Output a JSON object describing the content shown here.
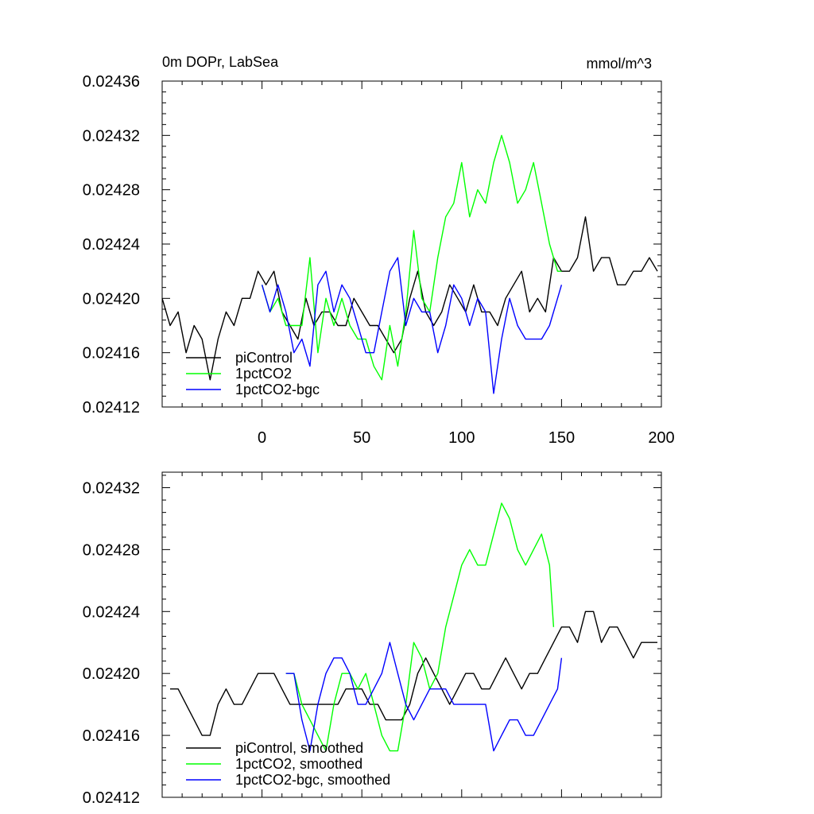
{
  "chart_data": [
    {
      "type": "line",
      "title_left": "0m DOPr, LabSea",
      "title_right": "mmol/m^3",
      "xlim": [
        -50,
        200
      ],
      "ylim": [
        0.02412,
        0.02436
      ],
      "y_ticks": [
        0.02412,
        0.02416,
        0.0242,
        0.02424,
        0.02428,
        0.02432,
        0.02436
      ],
      "y_tick_labels": [
        "0.02412",
        "0.02416",
        "0.02420",
        "0.02424",
        "0.02428",
        "0.02432",
        "0.02436"
      ],
      "x_ticks": [
        0,
        50,
        100,
        150,
        200
      ],
      "x_tick_labels": [
        "0",
        "50",
        "100",
        "150",
        "200"
      ],
      "legend_position": "bottom-left",
      "series": [
        {
          "name": "piControl",
          "color": "#000000",
          "x": [
            -50,
            -46,
            -42,
            -38,
            -34,
            -30,
            -26,
            -22,
            -18,
            -14,
            -10,
            -6,
            -2,
            2,
            6,
            10,
            14,
            18,
            22,
            26,
            30,
            34,
            38,
            42,
            46,
            50,
            54,
            58,
            62,
            66,
            70,
            74,
            78,
            82,
            86,
            90,
            94,
            98,
            102,
            106,
            110,
            114,
            118,
            122,
            126,
            130,
            134,
            138,
            142,
            146,
            150,
            154,
            158,
            162,
            166,
            170,
            174,
            178,
            182,
            186,
            190,
            194,
            198
          ],
          "values": [
            0.0242,
            0.02418,
            0.02419,
            0.02416,
            0.02418,
            0.02417,
            0.02414,
            0.02417,
            0.02419,
            0.02418,
            0.0242,
            0.0242,
            0.02422,
            0.02421,
            0.02422,
            0.02419,
            0.02418,
            0.02417,
            0.0242,
            0.02418,
            0.02419,
            0.02419,
            0.02418,
            0.02418,
            0.0242,
            0.02419,
            0.02418,
            0.02418,
            0.02417,
            0.02416,
            0.02417,
            0.0242,
            0.02422,
            0.02419,
            0.02418,
            0.02419,
            0.02421,
            0.0242,
            0.02419,
            0.02421,
            0.02419,
            0.02419,
            0.02418,
            0.0242,
            0.02421,
            0.02422,
            0.02419,
            0.0242,
            0.02419,
            0.02423,
            0.02422,
            0.02422,
            0.02423,
            0.02426,
            0.02422,
            0.02423,
            0.02423,
            0.02421,
            0.02421,
            0.02422,
            0.02422,
            0.02423,
            0.02422
          ]
        },
        {
          "name": "1pctCO2",
          "color": "#00ff00",
          "x": [
            0,
            4,
            8,
            12,
            16,
            20,
            24,
            28,
            32,
            36,
            40,
            44,
            48,
            52,
            56,
            60,
            64,
            68,
            72,
            76,
            80,
            84,
            88,
            92,
            96,
            100,
            104,
            108,
            112,
            116,
            120,
            124,
            128,
            132,
            136,
            140,
            144,
            148,
            150
          ],
          "values": [
            0.02421,
            0.02419,
            0.0242,
            0.02418,
            0.02418,
            0.02418,
            0.02423,
            0.02416,
            0.0242,
            0.02418,
            0.0242,
            0.02418,
            0.02417,
            0.02417,
            0.02415,
            0.02414,
            0.02418,
            0.02415,
            0.02419,
            0.02425,
            0.0242,
            0.02419,
            0.02423,
            0.02426,
            0.02427,
            0.0243,
            0.02426,
            0.02428,
            0.02427,
            0.0243,
            0.02432,
            0.0243,
            0.02427,
            0.02428,
            0.0243,
            0.02427,
            0.02424,
            0.02422,
            0.02422
          ]
        },
        {
          "name": "1pctCO2-bgc",
          "color": "#0000ff",
          "x": [
            0,
            4,
            8,
            12,
            16,
            20,
            24,
            28,
            32,
            36,
            40,
            44,
            48,
            52,
            56,
            60,
            64,
            68,
            72,
            76,
            80,
            84,
            88,
            92,
            96,
            100,
            104,
            108,
            112,
            116,
            120,
            124,
            128,
            132,
            136,
            140,
            144,
            148,
            150
          ],
          "values": [
            0.02421,
            0.02419,
            0.02421,
            0.02419,
            0.02416,
            0.02417,
            0.02415,
            0.02421,
            0.02422,
            0.02419,
            0.02421,
            0.0242,
            0.02418,
            0.02416,
            0.02416,
            0.02419,
            0.02422,
            0.02423,
            0.02418,
            0.0242,
            0.02419,
            0.02419,
            0.02416,
            0.02418,
            0.02421,
            0.0242,
            0.02418,
            0.0242,
            0.02419,
            0.02413,
            0.02417,
            0.0242,
            0.02418,
            0.02417,
            0.02417,
            0.02417,
            0.02418,
            0.0242,
            0.02421
          ]
        }
      ]
    },
    {
      "type": "line",
      "xlim": [
        -50,
        200
      ],
      "ylim": [
        0.02412,
        0.02433
      ],
      "y_ticks": [
        0.02412,
        0.02416,
        0.0242,
        0.02424,
        0.02428,
        0.02432
      ],
      "y_tick_labels": [
        "0.02412",
        "0.02416",
        "0.02420",
        "0.02424",
        "0.02428",
        "0.02432"
      ],
      "x_ticks": [
        0,
        50,
        100,
        150,
        200
      ],
      "legend_position": "bottom-left",
      "series": [
        {
          "name": "piControl, smoothed",
          "color": "#000000",
          "x": [
            -46,
            -42,
            -38,
            -34,
            -30,
            -26,
            -22,
            -18,
            -14,
            -10,
            -6,
            -2,
            2,
            6,
            10,
            14,
            18,
            22,
            26,
            30,
            34,
            38,
            42,
            46,
            50,
            54,
            58,
            62,
            66,
            70,
            74,
            78,
            82,
            86,
            90,
            94,
            98,
            102,
            106,
            110,
            114,
            118,
            122,
            126,
            130,
            134,
            138,
            142,
            146,
            150,
            154,
            158,
            162,
            166,
            170,
            174,
            178,
            182,
            186,
            190,
            194,
            198
          ],
          "values": [
            0.02419,
            0.02419,
            0.02418,
            0.02417,
            0.02416,
            0.02416,
            0.02418,
            0.02419,
            0.02418,
            0.02418,
            0.02419,
            0.0242,
            0.0242,
            0.0242,
            0.02419,
            0.02418,
            0.02418,
            0.02418,
            0.02418,
            0.02418,
            0.02418,
            0.02418,
            0.02419,
            0.02419,
            0.02419,
            0.02418,
            0.02418,
            0.02417,
            0.02417,
            0.02417,
            0.02418,
            0.0242,
            0.02421,
            0.0242,
            0.02419,
            0.02418,
            0.02419,
            0.0242,
            0.0242,
            0.02419,
            0.02419,
            0.0242,
            0.02421,
            0.0242,
            0.02419,
            0.0242,
            0.0242,
            0.02421,
            0.02422,
            0.02423,
            0.02423,
            0.02422,
            0.02424,
            0.02424,
            0.02422,
            0.02423,
            0.02423,
            0.02422,
            0.02421,
            0.02422,
            0.02422,
            0.02422
          ]
        },
        {
          "name": "1pctCO2, smoothed",
          "color": "#00ff00",
          "x": [
            12,
            16,
            20,
            24,
            28,
            32,
            36,
            40,
            44,
            48,
            52,
            56,
            60,
            64,
            68,
            72,
            76,
            80,
            84,
            88,
            92,
            96,
            100,
            104,
            108,
            112,
            116,
            120,
            124,
            128,
            132,
            136,
            140,
            144,
            146
          ],
          "values": [
            0.0242,
            0.0242,
            0.02418,
            0.02417,
            0.02416,
            0.02415,
            0.02418,
            0.0242,
            0.0242,
            0.02419,
            0.0242,
            0.02418,
            0.02416,
            0.02415,
            0.02415,
            0.02418,
            0.02422,
            0.02421,
            0.02419,
            0.0242,
            0.02423,
            0.02425,
            0.02427,
            0.02428,
            0.02427,
            0.02427,
            0.02429,
            0.02431,
            0.0243,
            0.02428,
            0.02427,
            0.02428,
            0.02429,
            0.02427,
            0.02423
          ]
        },
        {
          "name": "1pctCO2-bgc, smoothed",
          "color": "#0000ff",
          "x": [
            12,
            16,
            20,
            24,
            28,
            32,
            36,
            40,
            44,
            48,
            52,
            56,
            60,
            64,
            68,
            72,
            76,
            80,
            84,
            88,
            92,
            96,
            100,
            104,
            108,
            112,
            116,
            120,
            124,
            128,
            132,
            136,
            140,
            144,
            148,
            150
          ],
          "values": [
            0.0242,
            0.0242,
            0.02417,
            0.02415,
            0.02418,
            0.0242,
            0.02421,
            0.02421,
            0.0242,
            0.02418,
            0.02418,
            0.02419,
            0.0242,
            0.02422,
            0.0242,
            0.02418,
            0.02417,
            0.02418,
            0.02419,
            0.02419,
            0.02419,
            0.02418,
            0.02418,
            0.02418,
            0.02418,
            0.02418,
            0.02415,
            0.02416,
            0.02417,
            0.02417,
            0.02416,
            0.02416,
            0.02417,
            0.02418,
            0.02419,
            0.02421
          ]
        }
      ]
    }
  ]
}
